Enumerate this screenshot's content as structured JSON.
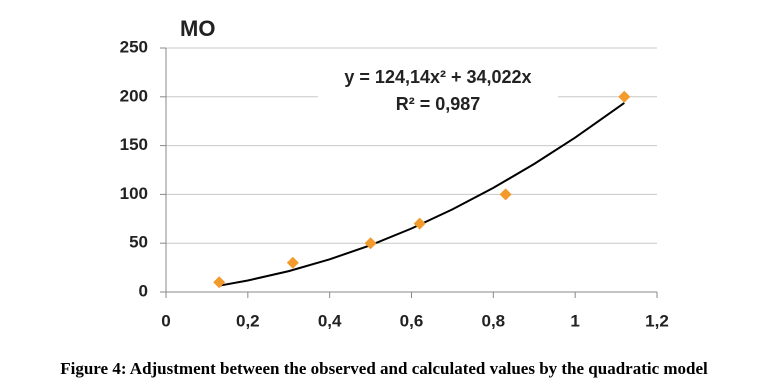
{
  "chart_data": {
    "type": "scatter",
    "title": "MO",
    "x": [
      0.13,
      0.31,
      0.5,
      0.62,
      0.83,
      1.12
    ],
    "values": [
      10,
      30,
      50,
      70,
      100,
      200
    ],
    "color": "#f39a2d",
    "trendline": {
      "color": "#000000",
      "x": [
        0.13,
        0.2,
        0.3,
        0.4,
        0.5,
        0.6,
        0.7,
        0.8,
        0.9,
        1.0,
        1.12
      ],
      "values": [
        6.5,
        11.8,
        21.4,
        33.5,
        48.0,
        65.1,
        84.6,
        106.7,
        131.2,
        158.2,
        193.8
      ]
    },
    "annotations": [
      "y = 124,14x² + 34,022x",
      "R² = 0,987"
    ],
    "xlim": [
      0,
      1.2
    ],
    "ylim": [
      0,
      250
    ],
    "xticks": [
      0,
      {
        "value": 0.2,
        "label": "0,2"
      },
      {
        "value": 0.4,
        "label": "0,4"
      },
      {
        "value": 0.6,
        "label": "0,6"
      },
      {
        "value": 0.8,
        "label": "0,8"
      },
      1,
      {
        "value": 1.2,
        "label": "1,2"
      }
    ],
    "yticks": [
      0,
      50,
      100,
      150,
      200,
      250
    ],
    "grid": true,
    "caption": "Figure 4: Adjustment between the observed and calculated values by the quadratic model"
  }
}
